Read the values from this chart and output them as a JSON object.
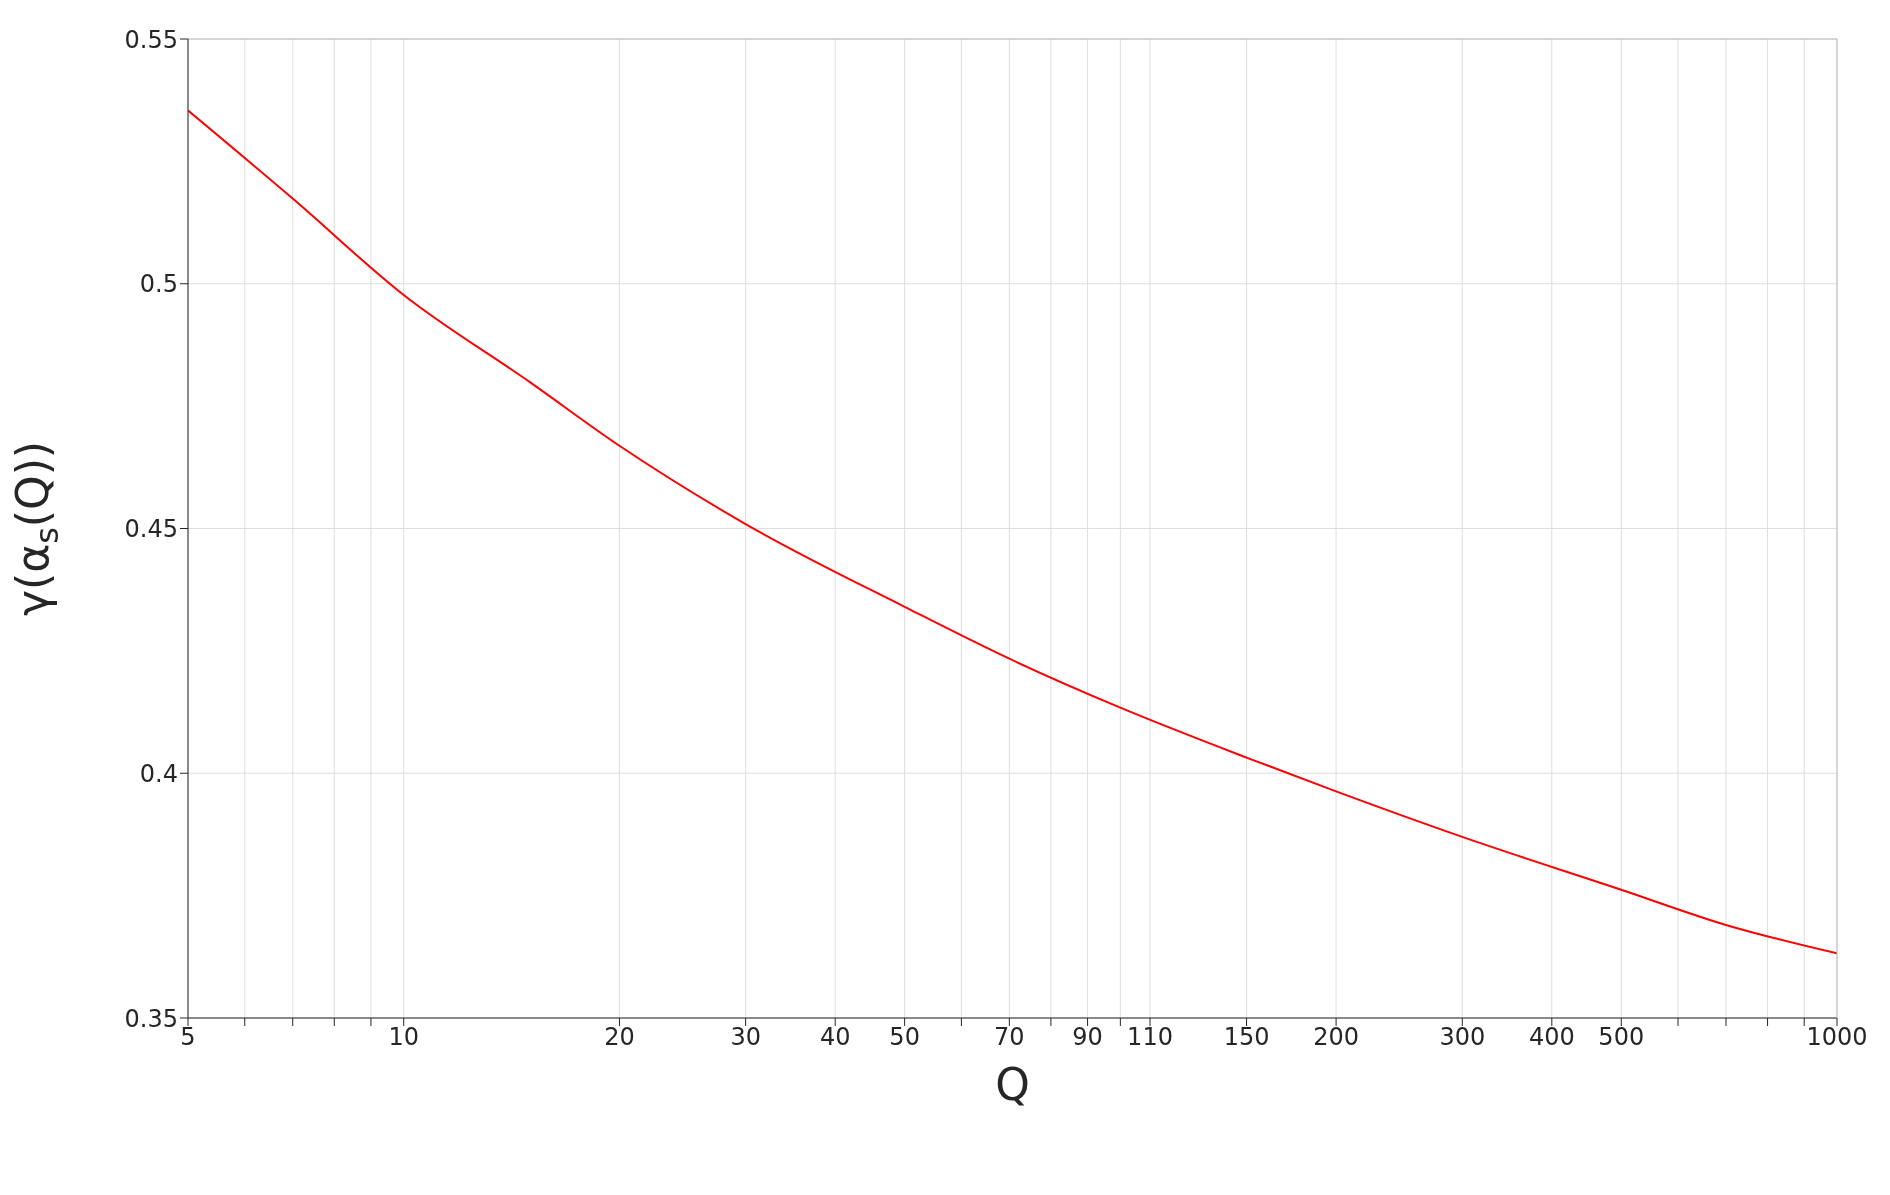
{
  "chart_data": {
    "type": "line",
    "xlabel": "Q",
    "ylabel": "γ(α$_{s}$(Q))",
    "x": [
      5,
      7,
      10,
      15,
      20,
      30,
      50,
      70,
      100,
      150,
      200,
      300,
      500,
      700,
      1000
    ],
    "series": [
      {
        "color": "#ff0000",
        "values": [
          0.5354,
          0.5174,
          0.4977,
          0.4799,
          0.4669,
          0.4509,
          0.434,
          0.4234,
          0.4134,
          0.4032,
          0.3963,
          0.387,
          0.3762,
          0.369,
          0.3632
        ]
      }
    ],
    "log": "x",
    "xlim": [
      5,
      1000
    ],
    "ylim": [
      0.35,
      0.55
    ],
    "xticks": [
      5,
      {
        "value": 6,
        "label": null
      },
      {
        "value": 7,
        "label": null
      },
      {
        "value": 8,
        "label": null
      },
      {
        "value": 9,
        "label": null
      },
      10,
      20,
      30,
      40,
      50,
      {
        "value": 60,
        "label": null
      },
      70,
      {
        "value": 80,
        "label": null
      },
      90,
      {
        "value": 100,
        "label": null
      },
      110,
      150,
      200,
      300,
      400,
      500,
      {
        "value": 600,
        "label": null
      },
      {
        "value": 700,
        "label": null
      },
      {
        "value": 800,
        "label": null
      },
      {
        "value": 900,
        "label": null
      },
      1000
    ],
    "yticks": [
      0.35,
      0.4,
      0.45,
      0.5,
      0.55
    ],
    "grid": true,
    "marker": "none",
    "line_style": "solid",
    "legend": false
  }
}
